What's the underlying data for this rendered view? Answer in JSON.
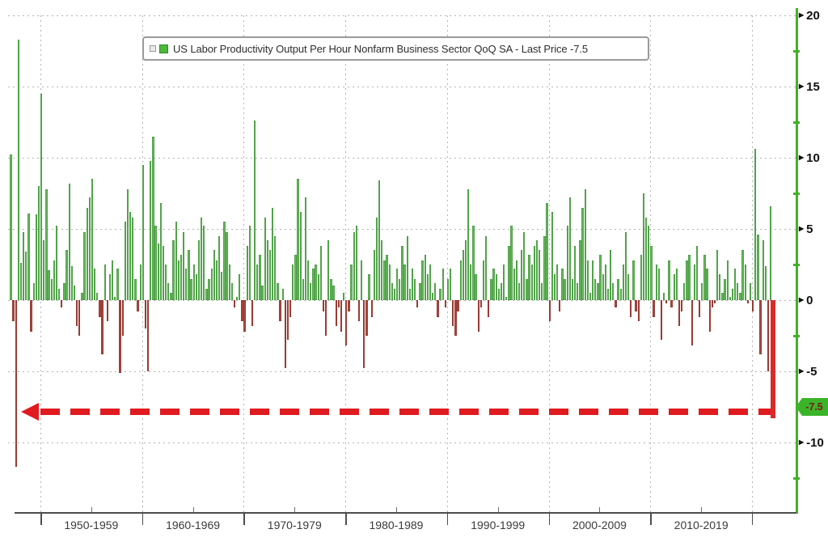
{
  "legend": {
    "label": "US Labor Productivity Output Per Hour Nonfarm Business Sector QoQ SA - Last Price -7.5"
  },
  "last_price_label": "-7.5",
  "chart_data": {
    "type": "bar",
    "title": "",
    "series_name": "US Labor Productivity Output Per Hour Nonfarm Business Sector QoQ SA",
    "frequency": "quarterly",
    "x_start": "1947-Q1",
    "x_end": "2022-Q1",
    "last_price": -7.5,
    "ylim": [
      -15,
      20.5
    ],
    "y_ticks_major": [
      20,
      15,
      10,
      5,
      0,
      -5,
      -10
    ],
    "y_ticks_minor": [
      17.5,
      12.5,
      7.5,
      2.5,
      -2.5,
      -12.5
    ],
    "x_gridline_years": [
      1950,
      1960,
      1970,
      1980,
      1990,
      2000,
      2010,
      2020
    ],
    "x_tick_labels": [
      "1950-1959",
      "1960-1969",
      "1970-1979",
      "1980-1989",
      "1990-1999",
      "2000-2009",
      "2010-2019"
    ],
    "legend_position": "top",
    "grid": "dotted",
    "positive_color": "#66b75c",
    "negative_color": "#ab4840",
    "axis_color": "#43b02a",
    "annotation_color": "#e01b20",
    "badge_bg_color": "#3cb42a",
    "annotation": "thick red dashed arrow at -7.5 from the last bar (2022-Q1) pointing left toward the 1947 lows",
    "values": [
      10.2,
      -1.5,
      -11.7,
      18.3,
      2.6,
      4.8,
      3.4,
      6.1,
      -2.2,
      1.2,
      6.0,
      8.0,
      14.5,
      4.2,
      7.8,
      2.1,
      1.5,
      2.8,
      5.2,
      0.8,
      -0.5,
      1.2,
      3.5,
      8.2,
      2.4,
      1.0,
      -1.8,
      -2.5,
      0.5,
      4.8,
      6.5,
      7.2,
      8.5,
      2.2,
      0.5,
      -1.2,
      -3.8,
      2.5,
      -1.5,
      1.8,
      2.8,
      0.2,
      2.2,
      -5.1,
      -2.5,
      5.5,
      7.8,
      6.2,
      5.8,
      1.5,
      -0.8,
      2.5,
      9.5,
      -2.0,
      -5.0,
      9.8,
      11.5,
      5.2,
      4.0,
      6.8,
      3.8,
      2.5,
      1.2,
      0.5,
      4.2,
      5.5,
      2.8,
      3.2,
      4.8,
      2.2,
      3.5,
      1.5,
      2.5,
      1.8,
      4.2,
      5.8,
      5.2,
      0.8,
      1.5,
      2.2,
      3.5,
      2.8,
      4.5,
      2.0,
      5.5,
      4.8,
      2.5,
      1.2,
      -0.5,
      0.2,
      1.8,
      -1.5,
      -2.2,
      3.8,
      5.2,
      -1.8,
      12.6,
      2.5,
      3.2,
      1.0,
      5.8,
      4.2,
      3.5,
      6.5,
      4.5,
      1.2,
      -1.5,
      0.8,
      -4.8,
      -2.8,
      -1.2,
      2.5,
      3.2,
      8.5,
      6.2,
      1.5,
      7.2,
      2.8,
      1.2,
      2.2,
      2.5,
      1.8,
      3.8,
      -0.8,
      -2.5,
      4.2,
      1.5,
      1.0,
      -1.8,
      -0.5,
      -2.2,
      0.5,
      -3.2,
      -0.8,
      2.5,
      4.8,
      5.2,
      -1.5,
      2.8,
      -4.8,
      -2.5,
      1.8,
      -1.2,
      3.5,
      5.8,
      8.4,
      4.2,
      2.8,
      3.2,
      2.5,
      1.2,
      0.8,
      2.2,
      1.5,
      3.8,
      2.5,
      4.5,
      0.8,
      2.2,
      1.5,
      -0.5,
      1.2,
      2.8,
      3.2,
      1.8,
      2.5,
      0.5,
      1.2,
      -1.2,
      0.8,
      2.2,
      -0.5,
      1.5,
      2.2,
      -1.8,
      -2.5,
      -0.8,
      2.8,
      3.5,
      4.2,
      7.8,
      2.5,
      5.2,
      1.8,
      -2.2,
      -0.5,
      2.8,
      4.5,
      -1.2,
      1.5,
      2.2,
      1.8,
      0.8,
      1.2,
      2.5,
      0.2,
      3.8,
      5.2,
      2.2,
      2.8,
      1.2,
      3.5,
      4.8,
      1.5,
      3.2,
      2.5,
      3.8,
      4.2,
      3.5,
      1.2,
      4.5,
      6.8,
      -1.5,
      6.2,
      1.8,
      2.5,
      -0.8,
      2.2,
      1.5,
      5.2,
      7.2,
      1.5,
      3.8,
      1.2,
      4.2,
      6.5,
      7.8,
      2.8,
      0.5,
      2.8,
      1.5,
      1.2,
      3.2,
      1.8,
      2.5,
      0.8,
      3.5,
      1.2,
      -0.5,
      1.5,
      0.8,
      2.5,
      4.8,
      1.8,
      -1.2,
      2.8,
      -0.8,
      -1.5,
      3.2,
      7.5,
      5.8,
      5.2,
      3.8,
      -1.2,
      2.5,
      2.2,
      -2.8,
      0.5,
      -0.2,
      2.8,
      -0.5,
      1.8,
      2.2,
      -1.8,
      -0.8,
      1.2,
      2.8,
      3.2,
      -3.2,
      2.5,
      3.8,
      -1.2,
      1.2,
      3.2,
      2.2,
      -2.2,
      -0.5,
      -0.2,
      3.5,
      1.8,
      0.5,
      1.5,
      2.8,
      0.2,
      0.8,
      2.2,
      1.2,
      0.5,
      3.5,
      2.5,
      -0.2,
      1.2,
      -0.8,
      10.6,
      4.6,
      -3.8,
      4.2,
      2.4,
      -5.0,
      6.6,
      -7.5
    ]
  }
}
